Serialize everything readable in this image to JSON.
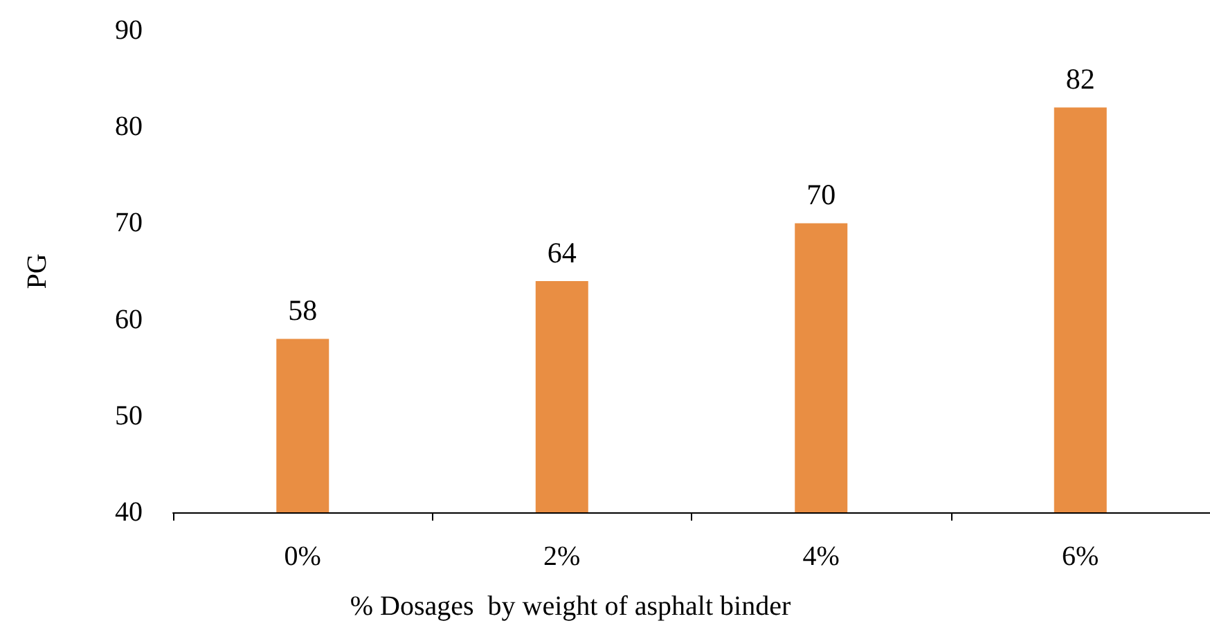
{
  "chart_data": {
    "type": "bar",
    "xlabel": "% Dosages  by weight of asphalt binder",
    "ylabel": "PG",
    "categories": [
      "0%",
      "2%",
      "4%",
      "6%"
    ],
    "series": [
      {
        "color": "#e98e43",
        "values": [
          58,
          64,
          70,
          82
        ]
      }
    ],
    "ylim": [
      40,
      90
    ],
    "yticks": [
      40,
      50,
      60,
      70,
      80,
      90
    ],
    "data_labels": true
  }
}
